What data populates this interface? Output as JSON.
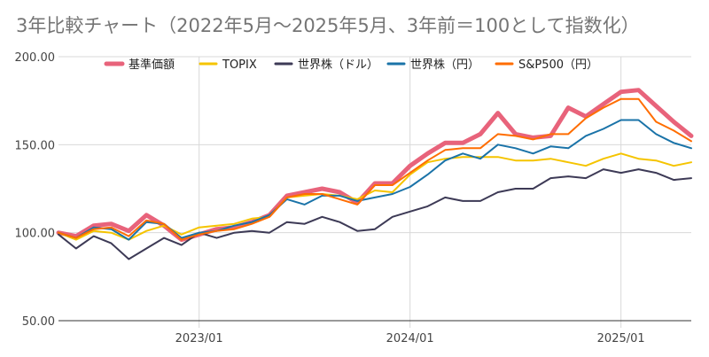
{
  "chart_data": {
    "type": "line",
    "title": "3年比較チャート（2022年5月〜2025年5月、3年前＝100として指数化）",
    "xlabel": "",
    "ylabel": "",
    "ylim": [
      50,
      200
    ],
    "yticks": [
      50,
      100,
      150,
      200
    ],
    "ytick_labels": [
      "50.00",
      "100.00",
      "150.00",
      "200.00"
    ],
    "xticks": [
      "2023-01",
      "2024-01",
      "2025-01"
    ],
    "xtick_labels": [
      "2023/01",
      "2024/01",
      "2025/01"
    ],
    "x_range": [
      "2022-05",
      "2025-05"
    ],
    "grid": true,
    "legend_position": "top",
    "x": [
      "2022-05",
      "2022-06",
      "2022-07",
      "2022-08",
      "2022-09",
      "2022-10",
      "2022-11",
      "2022-12",
      "2023-01",
      "2023-02",
      "2023-03",
      "2023-04",
      "2023-05",
      "2023-06",
      "2023-07",
      "2023-08",
      "2023-09",
      "2023-10",
      "2023-11",
      "2023-12",
      "2024-01",
      "2024-02",
      "2024-03",
      "2024-04",
      "2024-05",
      "2024-06",
      "2024-07",
      "2024-08",
      "2024-09",
      "2024-10",
      "2024-11",
      "2024-12",
      "2025-01",
      "2025-02",
      "2025-03",
      "2025-04",
      "2025-05"
    ],
    "series": [
      {
        "name": "基準価額",
        "color": "#e8637b",
        "width": 5,
        "values": [
          100,
          98,
          104,
          105,
          101,
          110,
          104,
          96,
          99,
          102,
          103,
          106,
          110,
          121,
          123,
          125,
          123,
          117,
          128,
          128,
          138,
          145,
          151,
          151,
          156,
          168,
          156,
          154,
          155,
          171,
          166,
          173,
          180,
          181,
          172,
          163,
          155
        ]
      },
      {
        "name": "TOPIX",
        "color": "#f5c400",
        "width": 2,
        "values": [
          100,
          96,
          101,
          100,
          96,
          101,
          104,
          99,
          103,
          104,
          105,
          108,
          109,
          120,
          121,
          122,
          121,
          119,
          124,
          123,
          133,
          140,
          142,
          143,
          143,
          143,
          141,
          141,
          142,
          140,
          138,
          142,
          145,
          142,
          141,
          138,
          140
        ]
      },
      {
        "name": "世界株（ドル）",
        "color": "#3d3a56",
        "width": 2,
        "values": [
          99,
          91,
          98,
          94,
          85,
          91,
          97,
          93,
          100,
          97,
          100,
          101,
          100,
          106,
          105,
          109,
          106,
          101,
          102,
          109,
          112,
          115,
          120,
          118,
          118,
          123,
          125,
          125,
          131,
          132,
          131,
          136,
          134,
          136,
          134,
          130,
          131
        ]
      },
      {
        "name": "世界株（円）",
        "color": "#1a73a8",
        "width": 2,
        "values": [
          100,
          97,
          103,
          102,
          96,
          106,
          105,
          97,
          100,
          101,
          104,
          106,
          110,
          119,
          116,
          121,
          121,
          118,
          120,
          122,
          126,
          133,
          141,
          145,
          142,
          150,
          148,
          145,
          149,
          148,
          155,
          159,
          164,
          164,
          156,
          151,
          148
        ]
      },
      {
        "name": "S&P500（円）",
        "color": "#ff6d00",
        "width": 2,
        "values": [
          100,
          97,
          102,
          103,
          98,
          107,
          105,
          96,
          99,
          101,
          102,
          105,
          109,
          120,
          122,
          122,
          119,
          116,
          127,
          127,
          134,
          141,
          147,
          148,
          148,
          156,
          155,
          153,
          156,
          156,
          165,
          171,
          176,
          176,
          163,
          158,
          152
        ]
      }
    ]
  }
}
